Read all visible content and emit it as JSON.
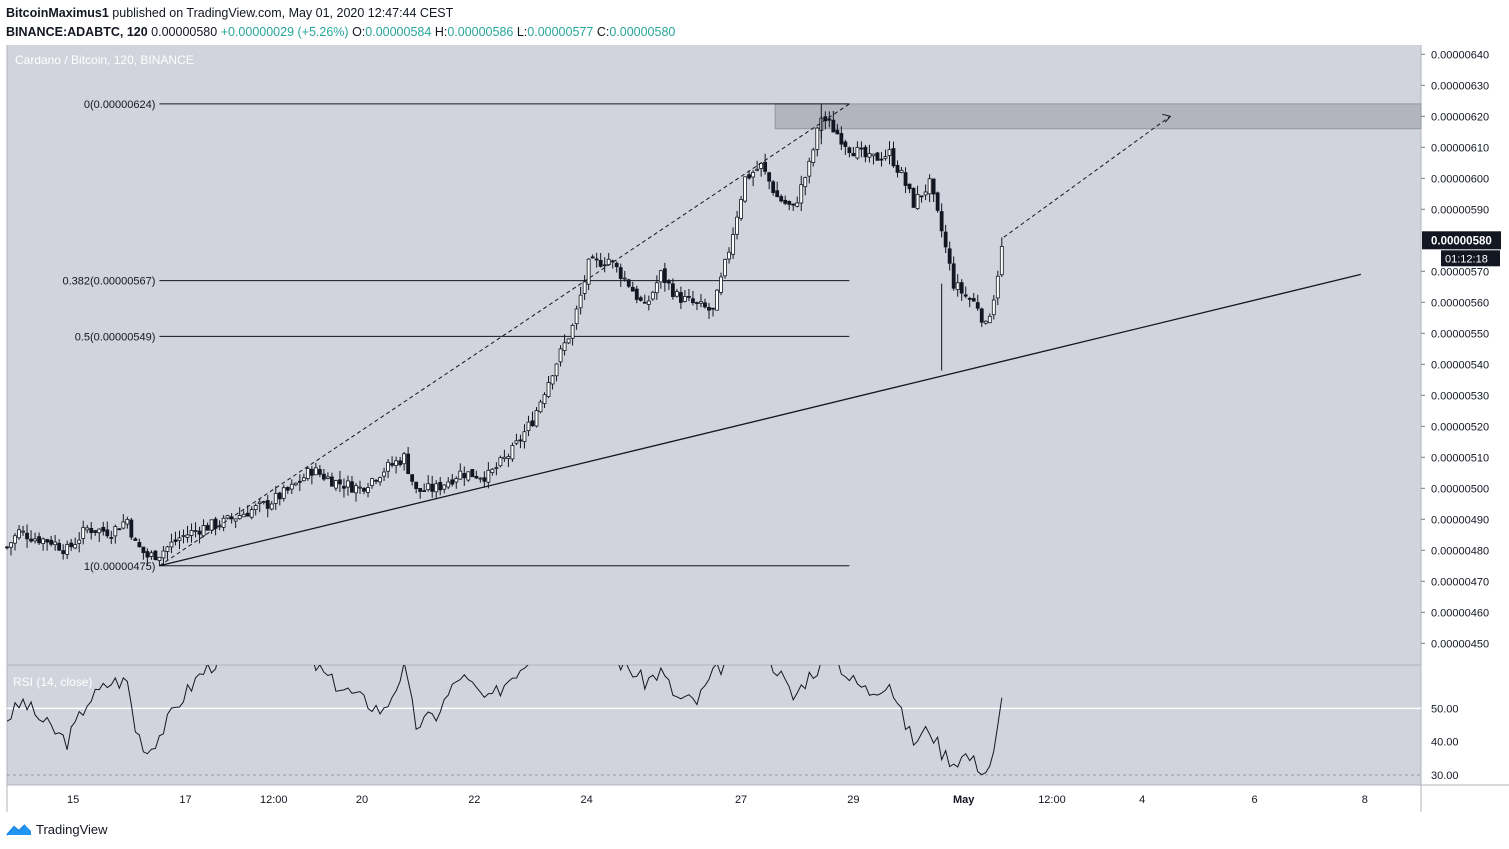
{
  "header": {
    "author": "BitcoinMaximus1",
    "published_text": "published on TradingView.com, May 01, 2020 12:47:44 CEST",
    "symbol": "BINANCE:ADABTC, 120",
    "last": "0.00000580",
    "change": "+0.00000029 (+5.26%)",
    "o_label": "O:",
    "o_val": "0.00000584",
    "h_label": "H:",
    "h_val": "0.00000586",
    "l_label": "L:",
    "l_val": "0.00000577",
    "c_label": "C:",
    "c_val": "0.00000580"
  },
  "footer": {
    "brand": "TradingView"
  },
  "colors": {
    "pane_bg": "#d1d4dc",
    "candle_up": "#ffffff",
    "candle_down": "#131722",
    "resistance_box": "#b2b5be",
    "line": "#131722"
  },
  "chart_data": {
    "type": "candlestick",
    "title": "Cardano / Bitcoin, 120, BINANCE",
    "last_price_label": "0.00000580",
    "countdown_label": "01:12:18",
    "y_ticks": [
      "0.00000640",
      "0.00000630",
      "0.00000620",
      "0.00000610",
      "0.00000600",
      "0.00000590",
      "0.00000570",
      "0.00000560",
      "0.00000550",
      "0.00000540",
      "0.00000530",
      "0.00000520",
      "0.00000510",
      "0.00000500",
      "0.00000490",
      "0.00000480",
      "0.00000470",
      "0.00000460",
      "0.00000450"
    ],
    "y_tick_values": [
      640,
      630,
      620,
      610,
      600,
      590,
      570,
      560,
      550,
      540,
      530,
      520,
      510,
      500,
      490,
      480,
      470,
      460,
      450
    ],
    "ylim": [
      443,
      643
    ],
    "y_unit": "1e-8 BTC",
    "x_ticks": [
      "15",
      "17",
      "12:00",
      "20",
      "22",
      "24",
      "27",
      "29",
      "May",
      "12:00",
      "4",
      "6",
      "8"
    ],
    "x_tick_index": [
      33,
      89,
      133,
      177,
      233,
      289,
      366,
      422,
      477,
      521,
      566,
      622,
      677
    ],
    "xlim": [
      0,
      705
    ],
    "fib_levels": [
      {
        "label": "0(0.00000624)",
        "value": 624
      },
      {
        "label": "0.382(0.00000567)",
        "value": 567
      },
      {
        "label": "0.5(0.00000549)",
        "value": 549
      },
      {
        "label": "1(0.00000475)",
        "value": 475
      }
    ],
    "fib_range_index": [
      76,
      420
    ],
    "resistance_zone": {
      "low": 616,
      "high": 624,
      "from_index": 383
    },
    "ascending_support": [
      {
        "index": 76,
        "value": 475
      },
      {
        "index": 675,
        "value": 569
      }
    ],
    "dashed_projection_1": [
      {
        "index": 76,
        "value": 475
      },
      {
        "index": 420,
        "value": 624
      }
    ],
    "dashed_projection_2": [
      {
        "index": 497,
        "value": 581
      },
      {
        "index": 580,
        "value": 620
      }
    ],
    "candle_anchors": [
      {
        "i": 0,
        "c": 481
      },
      {
        "i": 6,
        "c": 486
      },
      {
        "i": 14,
        "c": 484
      },
      {
        "i": 22,
        "c": 483
      },
      {
        "i": 30,
        "c": 480
      },
      {
        "i": 40,
        "c": 487
      },
      {
        "i": 52,
        "c": 486
      },
      {
        "i": 60,
        "c": 490
      },
      {
        "i": 64,
        "c": 482
      },
      {
        "i": 70,
        "c": 478
      },
      {
        "i": 76,
        "c": 479
      },
      {
        "i": 86,
        "c": 484
      },
      {
        "i": 96,
        "c": 487
      },
      {
        "i": 108,
        "c": 489
      },
      {
        "i": 118,
        "c": 492
      },
      {
        "i": 130,
        "c": 495
      },
      {
        "i": 142,
        "c": 500
      },
      {
        "i": 152,
        "c": 506
      },
      {
        "i": 164,
        "c": 502
      },
      {
        "i": 176,
        "c": 500
      },
      {
        "i": 188,
        "c": 506
      },
      {
        "i": 198,
        "c": 510
      },
      {
        "i": 204,
        "c": 499
      },
      {
        "i": 214,
        "c": 500
      },
      {
        "i": 226,
        "c": 505
      },
      {
        "i": 240,
        "c": 504
      },
      {
        "i": 252,
        "c": 512
      },
      {
        "i": 262,
        "c": 522
      },
      {
        "i": 272,
        "c": 538
      },
      {
        "i": 282,
        "c": 552
      },
      {
        "i": 290,
        "c": 572
      },
      {
        "i": 300,
        "c": 574
      },
      {
        "i": 310,
        "c": 566
      },
      {
        "i": 318,
        "c": 558
      },
      {
        "i": 326,
        "c": 569
      },
      {
        "i": 334,
        "c": 562
      },
      {
        "i": 344,
        "c": 559
      },
      {
        "i": 352,
        "c": 557
      },
      {
        "i": 360,
        "c": 577
      },
      {
        "i": 368,
        "c": 600
      },
      {
        "i": 376,
        "c": 604
      },
      {
        "i": 384,
        "c": 594
      },
      {
        "i": 392,
        "c": 590
      },
      {
        "i": 400,
        "c": 604
      },
      {
        "i": 406,
        "c": 620
      },
      {
        "i": 412,
        "c": 616
      },
      {
        "i": 420,
        "c": 610
      },
      {
        "i": 430,
        "c": 606
      },
      {
        "i": 440,
        "c": 608
      },
      {
        "i": 446,
        "c": 601
      },
      {
        "i": 452,
        "c": 592
      },
      {
        "i": 460,
        "c": 598
      },
      {
        "i": 466,
        "c": 583
      },
      {
        "i": 472,
        "c": 566
      },
      {
        "i": 478,
        "c": 562
      },
      {
        "i": 484,
        "c": 559
      },
      {
        "i": 488,
        "c": 552
      },
      {
        "i": 492,
        "c": 562
      },
      {
        "i": 497,
        "c": 581
      }
    ],
    "rsi": {
      "label": "RSI (14, close)",
      "ticks": [
        "50.00",
        "40.00",
        "30.00"
      ],
      "tick_values": [
        50,
        40,
        30
      ],
      "ylim": [
        27,
        63
      ],
      "levels": [
        50,
        30
      ],
      "anchors": [
        {
          "i": 0,
          "v": 47
        },
        {
          "i": 8,
          "v": 52
        },
        {
          "i": 18,
          "v": 46
        },
        {
          "i": 30,
          "v": 40
        },
        {
          "i": 40,
          "v": 52
        },
        {
          "i": 52,
          "v": 58
        },
        {
          "i": 60,
          "v": 58
        },
        {
          "i": 64,
          "v": 44
        },
        {
          "i": 70,
          "v": 37
        },
        {
          "i": 76,
          "v": 42
        },
        {
          "i": 86,
          "v": 52
        },
        {
          "i": 96,
          "v": 60
        },
        {
          "i": 108,
          "v": 66
        },
        {
          "i": 130,
          "v": 68
        },
        {
          "i": 150,
          "v": 65
        },
        {
          "i": 162,
          "v": 58
        },
        {
          "i": 176,
          "v": 53
        },
        {
          "i": 188,
          "v": 49
        },
        {
          "i": 198,
          "v": 62
        },
        {
          "i": 204,
          "v": 45
        },
        {
          "i": 214,
          "v": 48
        },
        {
          "i": 226,
          "v": 60
        },
        {
          "i": 240,
          "v": 52
        },
        {
          "i": 252,
          "v": 60
        },
        {
          "i": 262,
          "v": 66
        },
        {
          "i": 290,
          "v": 70
        },
        {
          "i": 310,
          "v": 62
        },
        {
          "i": 318,
          "v": 58
        },
        {
          "i": 326,
          "v": 61
        },
        {
          "i": 334,
          "v": 53
        },
        {
          "i": 344,
          "v": 52
        },
        {
          "i": 352,
          "v": 60
        },
        {
          "i": 368,
          "v": 70
        },
        {
          "i": 384,
          "v": 62
        },
        {
          "i": 392,
          "v": 53
        },
        {
          "i": 400,
          "v": 60
        },
        {
          "i": 412,
          "v": 66
        },
        {
          "i": 420,
          "v": 59
        },
        {
          "i": 430,
          "v": 55
        },
        {
          "i": 440,
          "v": 58
        },
        {
          "i": 446,
          "v": 48
        },
        {
          "i": 452,
          "v": 40
        },
        {
          "i": 460,
          "v": 44
        },
        {
          "i": 466,
          "v": 37
        },
        {
          "i": 472,
          "v": 34
        },
        {
          "i": 478,
          "v": 36
        },
        {
          "i": 484,
          "v": 33
        },
        {
          "i": 488,
          "v": 31
        },
        {
          "i": 492,
          "v": 36
        },
        {
          "i": 497,
          "v": 56
        }
      ]
    }
  }
}
